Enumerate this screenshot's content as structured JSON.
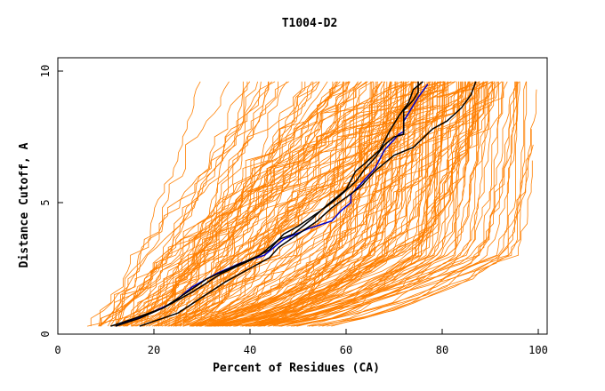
{
  "chart_data": {
    "type": "line",
    "title": "T1004-D2",
    "xlabel": "Percent of Residues (CA)",
    "ylabel": "Distance Cutoff, A",
    "xlim": [
      0,
      100
    ],
    "ylim": [
      0,
      10
    ],
    "xticks": [
      0,
      20,
      40,
      60,
      80,
      100
    ],
    "yticks": [
      0,
      5,
      10
    ],
    "grid": false,
    "legend": "none",
    "colors": {
      "background_models": "#ff7f00",
      "highlight_blue": "#0000cc",
      "highlight_black": "#000000"
    },
    "highlight_series": [
      {
        "color": "#0000cc",
        "x": [
          12,
          18,
          24,
          28,
          33,
          38,
          43,
          47,
          52,
          57,
          59,
          61,
          61,
          63,
          66,
          68,
          70,
          71,
          72,
          72,
          75,
          77
        ],
        "y": [
          0.3,
          0.7,
          1.2,
          1.8,
          2.3,
          2.7,
          3.0,
          3.6,
          4.0,
          4.3,
          4.7,
          5.0,
          5.3,
          5.7,
          6.3,
          7.0,
          7.4,
          7.6,
          7.7,
          8.1,
          9.0,
          9.5
        ]
      },
      {
        "color": "#000000",
        "x": [
          12,
          17,
          22,
          27,
          31,
          37,
          42,
          46,
          49,
          53,
          56,
          58,
          60,
          62,
          64,
          67,
          69,
          71,
          73,
          74,
          76
        ],
        "y": [
          0.3,
          0.6,
          1.0,
          1.6,
          2.1,
          2.6,
          3.0,
          3.6,
          3.8,
          4.4,
          4.9,
          5.2,
          5.5,
          6.2,
          6.5,
          7.0,
          7.7,
          8.3,
          8.8,
          9.3,
          9.6
        ]
      },
      {
        "color": "#000000",
        "x": [
          11,
          16,
          22,
          28,
          34,
          40,
          44,
          47,
          50,
          54,
          57,
          59,
          62,
          64,
          66,
          68,
          70,
          72,
          72,
          74,
          75,
          75
        ],
        "y": [
          0.3,
          0.6,
          1.0,
          1.6,
          2.3,
          2.8,
          3.2,
          3.8,
          4.1,
          4.6,
          5.0,
          5.3,
          5.8,
          6.3,
          6.7,
          7.2,
          7.5,
          7.6,
          8.5,
          8.9,
          9.2,
          9.6
        ]
      },
      {
        "color": "#000000",
        "x": [
          17,
          25,
          30,
          35,
          40,
          44,
          46,
          50,
          54,
          57,
          60,
          63,
          66,
          70,
          74,
          78,
          81,
          84,
          86,
          87
        ],
        "y": [
          0.3,
          0.8,
          1.4,
          2.0,
          2.5,
          2.9,
          3.3,
          3.8,
          4.3,
          4.8,
          5.2,
          5.6,
          6.2,
          6.8,
          7.1,
          7.8,
          8.1,
          8.6,
          9.1,
          9.6
        ]
      }
    ],
    "background_series_note": ""
  }
}
